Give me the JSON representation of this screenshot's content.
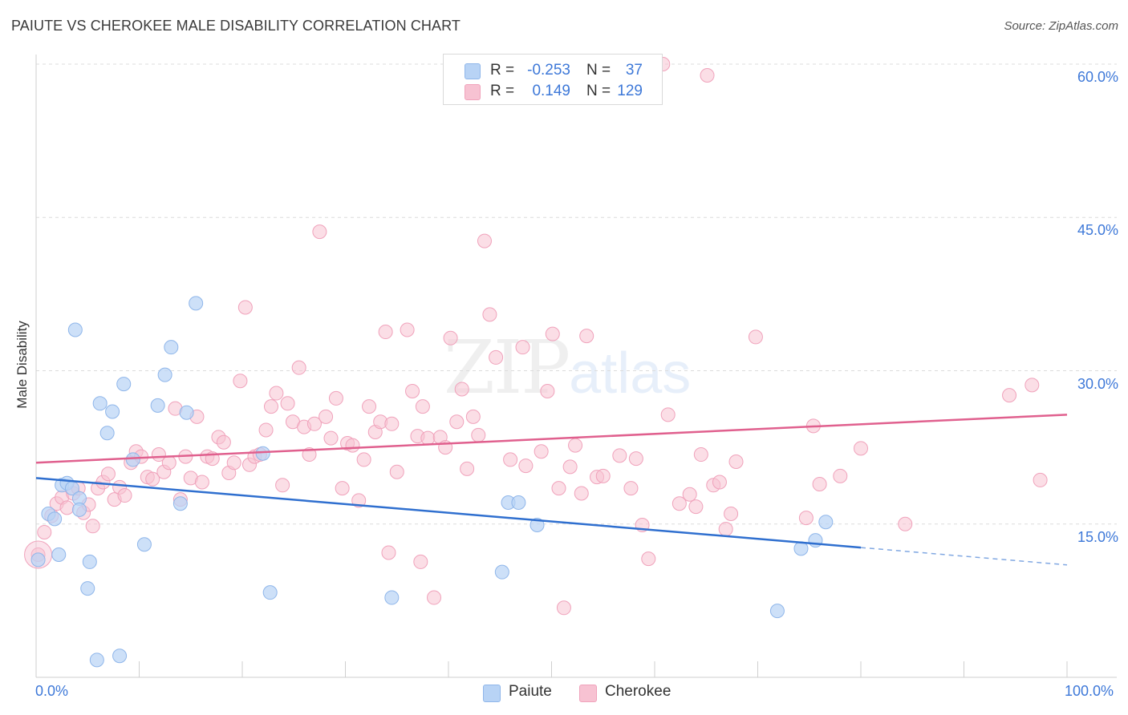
{
  "header": {
    "title": "PAIUTE VS CHEROKEE MALE DISABILITY CORRELATION CHART",
    "source": "Source: ZipAtlas.com"
  },
  "watermark": {
    "zip": "ZIP",
    "atlas": "atlas"
  },
  "legend": {
    "series": [
      {
        "name": "Paiute",
        "r_label": "R =",
        "r_value": "-0.253",
        "n_label": "N =",
        "n_value": "37"
      },
      {
        "name": "Cherokee",
        "r_label": "R =",
        "r_value": "0.149",
        "n_label": "N =",
        "n_value": "129"
      }
    ]
  },
  "colors": {
    "paiute_fill": "#b8d3f5",
    "paiute_stroke": "#8fb6ea",
    "paiute_line": "#2f6fcf",
    "cherokee_fill": "#f7c2d2",
    "cherokee_stroke": "#f0a2bb",
    "cherokee_line": "#e0608e",
    "accent_text": "#3d78d8",
    "grid": "#dcdcdc"
  },
  "chart_data": {
    "type": "scatter",
    "title": "PAIUTE VS CHEROKEE MALE DISABILITY CORRELATION CHART",
    "xlabel": "",
    "ylabel": "Male Disability",
    "xlim": [
      0,
      100
    ],
    "ylim": [
      0,
      60
    ],
    "x_tick_labels": [
      "0.0%",
      "100.0%"
    ],
    "y_ticks": [
      15,
      30,
      45,
      60
    ],
    "y_tick_labels": [
      "15.0%",
      "30.0%",
      "45.0%",
      "60.0%"
    ],
    "grid": true,
    "series": [
      {
        "name": "Paiute",
        "r": -0.253,
        "n": 37,
        "trend": {
          "x0": 0,
          "y0": 19.5,
          "x1": 80,
          "y1": 12.7,
          "dashed_to_x": 100,
          "dashed_to_y": 11.0
        },
        "points": [
          [
            0.2,
            11.5
          ],
          [
            1.2,
            16.0
          ],
          [
            1.8,
            15.5
          ],
          [
            2.5,
            18.8
          ],
          [
            2.2,
            12.0
          ],
          [
            3.0,
            19.0
          ],
          [
            3.5,
            18.5
          ],
          [
            4.2,
            17.5
          ],
          [
            3.8,
            34.0
          ],
          [
            4.2,
            16.4
          ],
          [
            5.2,
            11.3
          ],
          [
            5.0,
            8.7
          ],
          [
            5.9,
            1.7
          ],
          [
            6.2,
            26.8
          ],
          [
            6.9,
            23.9
          ],
          [
            7.4,
            26.0
          ],
          [
            8.1,
            2.1
          ],
          [
            8.5,
            28.7
          ],
          [
            9.4,
            21.3
          ],
          [
            10.5,
            13.0
          ],
          [
            11.8,
            26.6
          ],
          [
            12.5,
            29.6
          ],
          [
            13.1,
            32.3
          ],
          [
            14.0,
            17.0
          ],
          [
            14.6,
            25.9
          ],
          [
            15.5,
            36.6
          ],
          [
            22.0,
            21.9
          ],
          [
            22.7,
            8.3
          ],
          [
            34.5,
            7.8
          ],
          [
            45.2,
            10.3
          ],
          [
            45.8,
            17.1
          ],
          [
            46.8,
            17.1
          ],
          [
            48.6,
            14.9
          ],
          [
            71.9,
            6.5
          ],
          [
            74.2,
            12.6
          ],
          [
            75.6,
            13.4
          ],
          [
            76.6,
            15.2
          ]
        ]
      },
      {
        "name": "Cherokee",
        "r": 0.149,
        "n": 129,
        "trend": {
          "x0": 0,
          "y0": 21.0,
          "x1": 100,
          "y1": 25.7
        },
        "points": [
          [
            0.2,
            12.0
          ],
          [
            0.8,
            14.2
          ],
          [
            1.5,
            15.8
          ],
          [
            2.0,
            17.0
          ],
          [
            2.5,
            17.6
          ],
          [
            3.0,
            16.6
          ],
          [
            3.6,
            18.0
          ],
          [
            4.1,
            18.5
          ],
          [
            4.6,
            16.1
          ],
          [
            5.1,
            16.9
          ],
          [
            5.5,
            14.8
          ],
          [
            6.0,
            18.5
          ],
          [
            6.5,
            19.1
          ],
          [
            7.0,
            19.9
          ],
          [
            7.6,
            17.4
          ],
          [
            8.1,
            18.6
          ],
          [
            8.6,
            17.8
          ],
          [
            9.2,
            21.0
          ],
          [
            9.7,
            22.1
          ],
          [
            10.2,
            21.6
          ],
          [
            10.8,
            19.6
          ],
          [
            11.3,
            19.4
          ],
          [
            11.9,
            21.8
          ],
          [
            12.4,
            20.1
          ],
          [
            12.9,
            21.0
          ],
          [
            13.5,
            26.3
          ],
          [
            14.0,
            17.4
          ],
          [
            14.5,
            21.6
          ],
          [
            15.0,
            19.5
          ],
          [
            15.6,
            25.5
          ],
          [
            16.1,
            19.1
          ],
          [
            16.6,
            21.6
          ],
          [
            17.1,
            21.4
          ],
          [
            17.7,
            23.5
          ],
          [
            18.2,
            23.0
          ],
          [
            18.7,
            20.0
          ],
          [
            19.2,
            21.0
          ],
          [
            19.8,
            29.0
          ],
          [
            20.3,
            36.2
          ],
          [
            20.7,
            20.8
          ],
          [
            21.2,
            21.6
          ],
          [
            21.7,
            21.8
          ],
          [
            22.3,
            24.2
          ],
          [
            22.8,
            26.5
          ],
          [
            23.3,
            27.8
          ],
          [
            23.9,
            18.8
          ],
          [
            24.4,
            26.8
          ],
          [
            24.9,
            25.0
          ],
          [
            25.5,
            30.3
          ],
          [
            26.0,
            24.5
          ],
          [
            26.5,
            21.8
          ],
          [
            27.0,
            24.8
          ],
          [
            27.5,
            43.6
          ],
          [
            28.1,
            25.5
          ],
          [
            28.6,
            23.4
          ],
          [
            29.1,
            27.3
          ],
          [
            29.7,
            18.5
          ],
          [
            30.2,
            22.9
          ],
          [
            30.7,
            22.7
          ],
          [
            31.3,
            17.3
          ],
          [
            31.8,
            21.3
          ],
          [
            32.3,
            26.5
          ],
          [
            32.9,
            24.0
          ],
          [
            33.4,
            25.0
          ],
          [
            33.9,
            33.8
          ],
          [
            34.5,
            24.8
          ],
          [
            35.0,
            20.1
          ],
          [
            34.2,
            12.2
          ],
          [
            36.0,
            34.0
          ],
          [
            36.5,
            28.0
          ],
          [
            37.0,
            23.6
          ],
          [
            37.5,
            26.5
          ],
          [
            37.3,
            11.3
          ],
          [
            38.0,
            23.4
          ],
          [
            38.6,
            7.8
          ],
          [
            39.2,
            23.5
          ],
          [
            39.7,
            22.5
          ],
          [
            40.2,
            33.2
          ],
          [
            40.8,
            25.0
          ],
          [
            41.3,
            28.2
          ],
          [
            41.8,
            20.4
          ],
          [
            42.4,
            25.5
          ],
          [
            42.9,
            23.7
          ],
          [
            43.5,
            42.7
          ],
          [
            44.0,
            35.5
          ],
          [
            44.6,
            31.3
          ],
          [
            46.0,
            21.3
          ],
          [
            47.5,
            20.7
          ],
          [
            47.2,
            32.3
          ],
          [
            49.0,
            22.1
          ],
          [
            49.6,
            28.0
          ],
          [
            50.1,
            33.6
          ],
          [
            50.7,
            18.5
          ],
          [
            51.2,
            6.8
          ],
          [
            51.8,
            20.6
          ],
          [
            52.3,
            22.7
          ],
          [
            52.9,
            18.0
          ],
          [
            53.4,
            33.4
          ],
          [
            54.4,
            19.6
          ],
          [
            55.0,
            19.7
          ],
          [
            56.6,
            21.7
          ],
          [
            57.7,
            18.5
          ],
          [
            58.2,
            21.4
          ],
          [
            58.8,
            14.9
          ],
          [
            59.4,
            11.6
          ],
          [
            61.3,
            25.7
          ],
          [
            62.4,
            17.0
          ],
          [
            63.4,
            17.9
          ],
          [
            64.0,
            16.7
          ],
          [
            64.5,
            21.8
          ],
          [
            65.1,
            58.9
          ],
          [
            65.7,
            18.8
          ],
          [
            66.3,
            19.1
          ],
          [
            66.9,
            14.5
          ],
          [
            67.4,
            16.0
          ],
          [
            67.9,
            21.1
          ],
          [
            69.8,
            33.3
          ],
          [
            74.7,
            15.6
          ],
          [
            75.4,
            24.6
          ],
          [
            76.0,
            18.9
          ],
          [
            78.0,
            19.7
          ],
          [
            80.0,
            22.4
          ],
          [
            84.3,
            15.0
          ],
          [
            94.4,
            27.6
          ],
          [
            96.6,
            28.6
          ],
          [
            97.4,
            19.3
          ],
          [
            60.8,
            60.0
          ]
        ]
      }
    ]
  }
}
